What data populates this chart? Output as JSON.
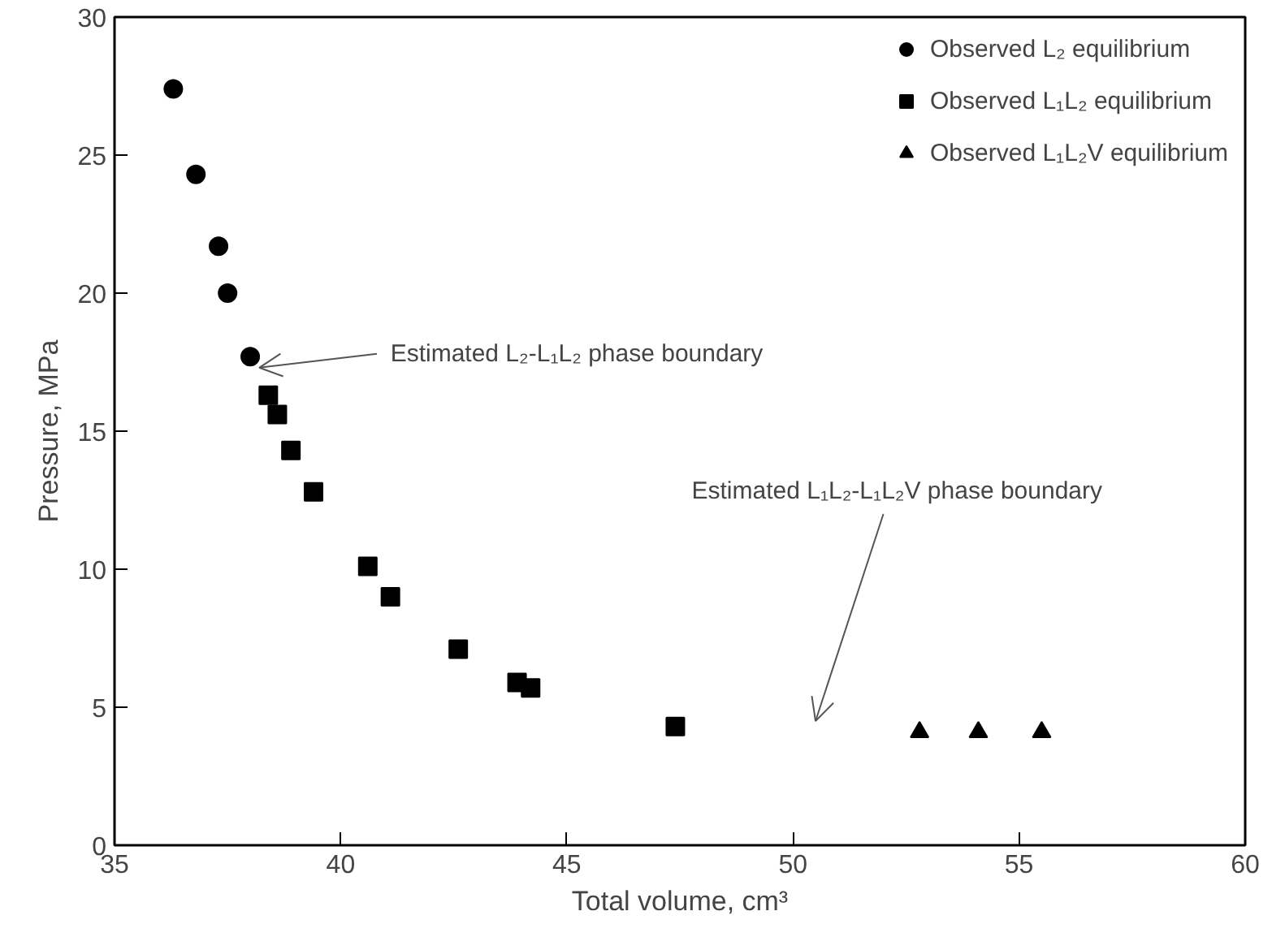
{
  "chart_data": {
    "type": "scatter",
    "xlabel": "Total volume, cm³",
    "ylabel": "Pressure, MPa",
    "xlim": [
      35,
      60
    ],
    "xticks": [
      35,
      40,
      45,
      50,
      55,
      60
    ],
    "ylim": [
      0,
      30
    ],
    "yticks": [
      0,
      5,
      10,
      15,
      20,
      25,
      30
    ],
    "grid": false,
    "legend": "top right",
    "series": [
      {
        "name": "Observed L₂ equilibrium",
        "color": "#000000",
        "marker": "circle",
        "x": [
          36.3,
          36.8,
          37.3,
          37.5,
          38.0
        ],
        "values": [
          27.4,
          24.3,
          21.7,
          20.0,
          17.7
        ]
      },
      {
        "name": "Observed L₁L₂ equilibrium",
        "color": "#000000",
        "marker": "square",
        "x": [
          38.4,
          38.6,
          38.9,
          39.4,
          40.6,
          41.1,
          42.6,
          43.9,
          44.2,
          47.4
        ],
        "values": [
          16.3,
          15.6,
          14.3,
          12.8,
          10.1,
          9.0,
          7.1,
          5.9,
          5.7,
          4.3
        ]
      },
      {
        "name": "Observed L₁L₂V equilibrium",
        "color": "#000000",
        "marker": "triangle",
        "x": [
          52.8,
          54.1,
          55.5
        ],
        "values": [
          4.1,
          4.1,
          4.1
        ]
      }
    ],
    "annotations": [
      {
        "text": "Estimated L₂-L₁L₂ phase boundary",
        "x": 38.2,
        "y": 17.3
      },
      "Estimated L₁L₂-L₁L₂V phase boundary"
    ]
  }
}
